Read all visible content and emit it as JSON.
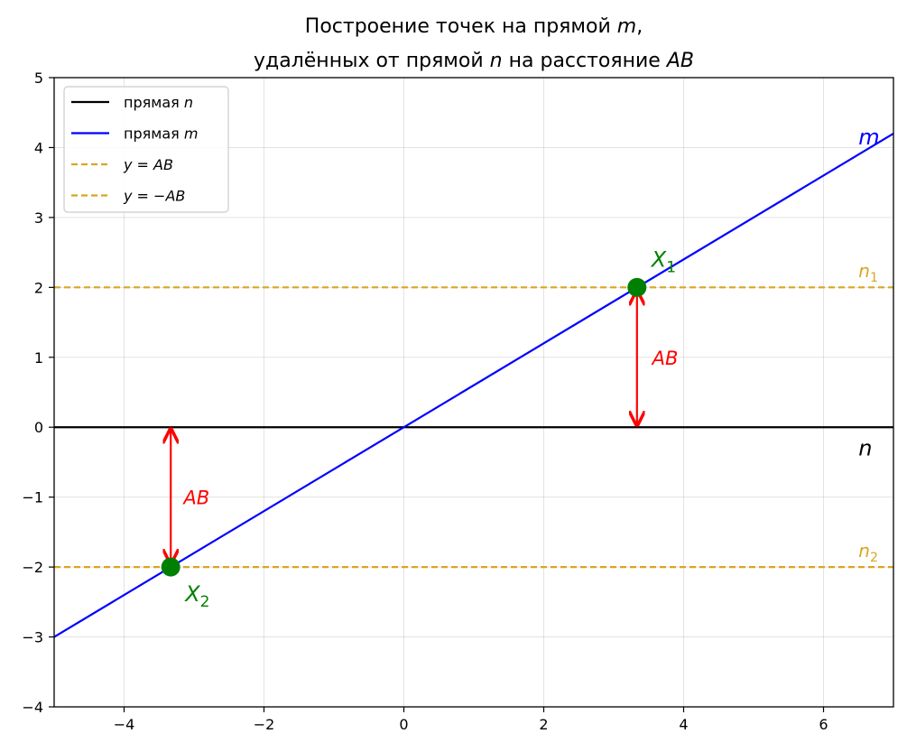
{
  "chart_data": {
    "type": "line",
    "title": {
      "line1_prefix": "Построение точек на прямой ",
      "line1_var": "m",
      "line1_suffix": ",",
      "line2_prefix": "удалённых от прямой ",
      "line2_var": "n",
      "line2_mid": " на расстояние ",
      "line2_var2": "AB"
    },
    "xlabel": "",
    "ylabel": "",
    "xlim": [
      -5,
      7
    ],
    "ylim": [
      -4,
      5
    ],
    "xticks": [
      -4,
      -2,
      0,
      2,
      4,
      6
    ],
    "yticks": [
      -4,
      -3,
      -2,
      -1,
      0,
      1,
      2,
      3,
      4,
      5
    ],
    "xtick_labels": [
      "−4",
      "−2",
      "0",
      "2",
      "4",
      "6"
    ],
    "ytick_labels": [
      "−4",
      "−3",
      "−2",
      "−1",
      "0",
      "1",
      "2",
      "3",
      "4",
      "5"
    ],
    "grid": true,
    "legend_position": "top-left",
    "series": [
      {
        "legend_prefix": "прямая ",
        "legend_var": "n",
        "color": "#000000",
        "style": "solid",
        "x": [
          -5,
          7
        ],
        "y": [
          0,
          0
        ]
      },
      {
        "legend_prefix": "прямая ",
        "legend_var": "m",
        "color": "#0000ff",
        "style": "solid",
        "x": [
          -5,
          7
        ],
        "y": [
          -3,
          4.2
        ]
      },
      {
        "legend_prefix": "",
        "legend_var": "y = AB",
        "color": "#daa520",
        "style": "dashed",
        "x": [
          -5,
          7
        ],
        "y": [
          2,
          2
        ]
      },
      {
        "legend_prefix": "",
        "legend_var": "y = −AB",
        "color": "#daa520",
        "style": "dashed",
        "x": [
          -5,
          7
        ],
        "y": [
          -2,
          -2
        ]
      }
    ],
    "points": [
      {
        "label": "X",
        "sub": "1",
        "x": 3.333,
        "y": 2,
        "color": "#008000"
      },
      {
        "label": "X",
        "sub": "2",
        "x": -3.333,
        "y": -2,
        "color": "#008000"
      }
    ],
    "arrows": [
      {
        "x": 3.333,
        "from_y": 0,
        "to_y": 2,
        "label": "AB",
        "label_x": 3.55,
        "label_y": 1.0,
        "color": "#ff0000"
      },
      {
        "x": -3.333,
        "from_y": 0,
        "to_y": -2,
        "label": "AB",
        "label_x": -3.15,
        "label_y": -1.0,
        "color": "#ff0000"
      }
    ],
    "line_labels": [
      {
        "text": "m",
        "sub": "",
        "x": 6.5,
        "y": 4.15,
        "color": "#0000ff",
        "size": 24
      },
      {
        "text": "n",
        "sub": "",
        "x": 6.5,
        "y": -0.3,
        "color": "#000000",
        "size": 24
      },
      {
        "text": "n",
        "sub": "1",
        "x": 6.5,
        "y": 2.25,
        "color": "#daa520",
        "size": 20
      },
      {
        "text": "n",
        "sub": "2",
        "x": 6.5,
        "y": -1.75,
        "color": "#daa520",
        "size": 20
      }
    ]
  }
}
